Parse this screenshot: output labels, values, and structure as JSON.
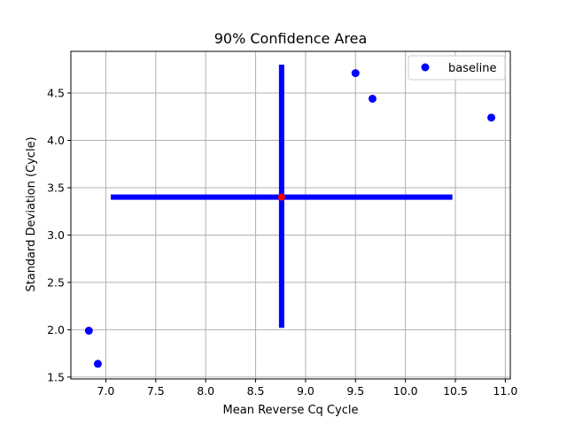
{
  "chart_data": {
    "type": "scatter",
    "title": "90% Confidence Area",
    "xlabel": "Mean Reverse Cq Cycle",
    "ylabel": "Standard Deviation (Cycle)",
    "xlim": [
      6.65,
      11.05
    ],
    "ylim": [
      1.48,
      4.94
    ],
    "xticks": [
      7.0,
      7.5,
      8.0,
      8.5,
      9.0,
      9.5,
      10.0,
      10.5,
      11.0
    ],
    "xtick_labels": [
      "7.0",
      "7.5",
      "8.0",
      "8.5",
      "9.0",
      "9.5",
      "10.0",
      "10.5",
      "11.0"
    ],
    "yticks": [
      1.5,
      2.0,
      2.5,
      3.0,
      3.5,
      4.0,
      4.5
    ],
    "ytick_labels": [
      "1.5",
      "2.0",
      "2.5",
      "3.0",
      "3.5",
      "4.0",
      "4.5"
    ],
    "grid": true,
    "legend_position": "top-right",
    "series": [
      {
        "name": "baseline",
        "color": "#0000ff",
        "marker": "circle",
        "x": [
          6.83,
          6.92,
          9.5,
          9.67,
          10.86
        ],
        "y": [
          1.99,
          1.64,
          4.71,
          4.44,
          4.24
        ]
      }
    ],
    "center_point": {
      "x": 8.76,
      "y": 3.4,
      "color": "#ff0000"
    },
    "confidence_area": {
      "color": "#0000ff",
      "horizontal": {
        "x": [
          7.05,
          10.47
        ],
        "y": 3.4
      },
      "vertical": {
        "x": 8.76,
        "y": [
          2.02,
          4.8
        ]
      }
    }
  }
}
